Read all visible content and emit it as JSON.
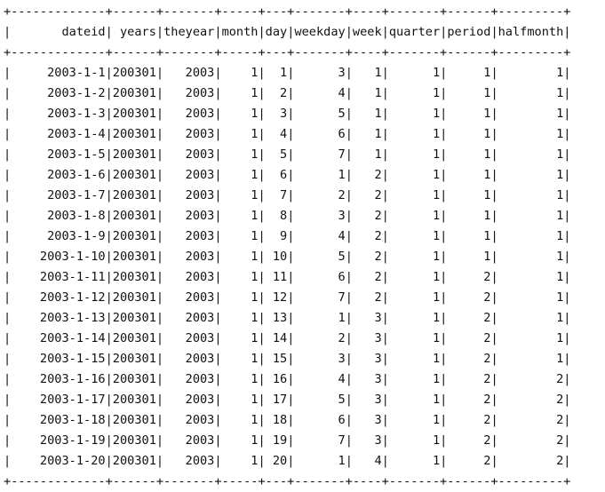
{
  "table": {
    "border": "+-------------+------+-------+-----+---+-------+----+-------+------+---------+",
    "columns": [
      "dateid",
      "years",
      "theyear",
      "month",
      "day",
      "weekday",
      "week",
      "quarter",
      "period",
      "halfmonth"
    ],
    "rows": [
      [
        "2003-1-1",
        "200301",
        "2003",
        "1",
        "1",
        "3",
        "1",
        "1",
        "1",
        "1"
      ],
      [
        "2003-1-2",
        "200301",
        "2003",
        "1",
        "2",
        "4",
        "1",
        "1",
        "1",
        "1"
      ],
      [
        "2003-1-3",
        "200301",
        "2003",
        "1",
        "3",
        "5",
        "1",
        "1",
        "1",
        "1"
      ],
      [
        "2003-1-4",
        "200301",
        "2003",
        "1",
        "4",
        "6",
        "1",
        "1",
        "1",
        "1"
      ],
      [
        "2003-1-5",
        "200301",
        "2003",
        "1",
        "5",
        "7",
        "1",
        "1",
        "1",
        "1"
      ],
      [
        "2003-1-6",
        "200301",
        "2003",
        "1",
        "6",
        "1",
        "2",
        "1",
        "1",
        "1"
      ],
      [
        "2003-1-7",
        "200301",
        "2003",
        "1",
        "7",
        "2",
        "2",
        "1",
        "1",
        "1"
      ],
      [
        "2003-1-8",
        "200301",
        "2003",
        "1",
        "8",
        "3",
        "2",
        "1",
        "1",
        "1"
      ],
      [
        "2003-1-9",
        "200301",
        "2003",
        "1",
        "9",
        "4",
        "2",
        "1",
        "1",
        "1"
      ],
      [
        "2003-1-10",
        "200301",
        "2003",
        "1",
        "10",
        "5",
        "2",
        "1",
        "1",
        "1"
      ],
      [
        "2003-1-11",
        "200301",
        "2003",
        "1",
        "11",
        "6",
        "2",
        "1",
        "2",
        "1"
      ],
      [
        "2003-1-12",
        "200301",
        "2003",
        "1",
        "12",
        "7",
        "2",
        "1",
        "2",
        "1"
      ],
      [
        "2003-1-13",
        "200301",
        "2003",
        "1",
        "13",
        "1",
        "3",
        "1",
        "2",
        "1"
      ],
      [
        "2003-1-14",
        "200301",
        "2003",
        "1",
        "14",
        "2",
        "3",
        "1",
        "2",
        "1"
      ],
      [
        "2003-1-15",
        "200301",
        "2003",
        "1",
        "15",
        "3",
        "3",
        "1",
        "2",
        "1"
      ],
      [
        "2003-1-16",
        "200301",
        "2003",
        "1",
        "16",
        "4",
        "3",
        "1",
        "2",
        "2"
      ],
      [
        "2003-1-17",
        "200301",
        "2003",
        "1",
        "17",
        "5",
        "3",
        "1",
        "2",
        "2"
      ],
      [
        "2003-1-18",
        "200301",
        "2003",
        "1",
        "18",
        "6",
        "3",
        "1",
        "2",
        "2"
      ],
      [
        "2003-1-19",
        "200301",
        "2003",
        "1",
        "19",
        "7",
        "3",
        "1",
        "2",
        "2"
      ],
      [
        "2003-1-20",
        "200301",
        "2003",
        "1",
        "20",
        "1",
        "4",
        "1",
        "2",
        "2"
      ]
    ]
  }
}
